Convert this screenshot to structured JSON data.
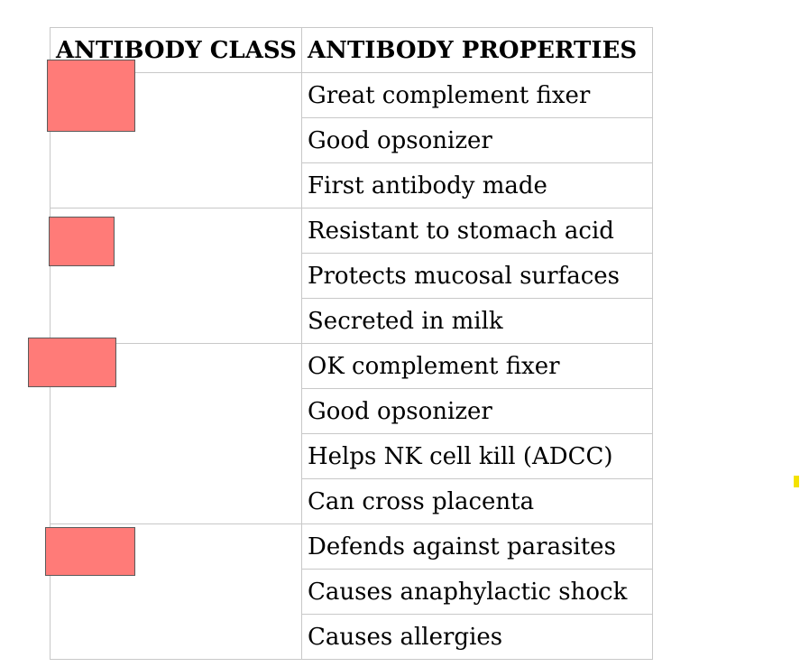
{
  "table": {
    "headers": {
      "class": "ANTIBODY CLASS",
      "properties": "ANTIBODY PROPERTIES"
    },
    "groups": [
      {
        "class_label": "",
        "properties": [
          "Great complement fixer",
          "Good opsonizer",
          "First antibody made"
        ]
      },
      {
        "class_label": "",
        "properties": [
          "Resistant to stomach acid",
          "Protects mucosal surfaces",
          "Secreted in milk"
        ]
      },
      {
        "class_label": "",
        "properties": [
          "OK complement fixer",
          "Good opsonizer",
          "Helps NK cell kill (ADCC)",
          "Can cross placenta"
        ]
      },
      {
        "class_label": "",
        "properties": [
          "Defends against parasites",
          "Causes anaphylactic shock",
          "Causes allergies"
        ]
      }
    ]
  },
  "colors": {
    "redaction_fill": "#ff7b78",
    "grid_line": "#c8c8c8",
    "highlight_mark": "#f4e200"
  }
}
